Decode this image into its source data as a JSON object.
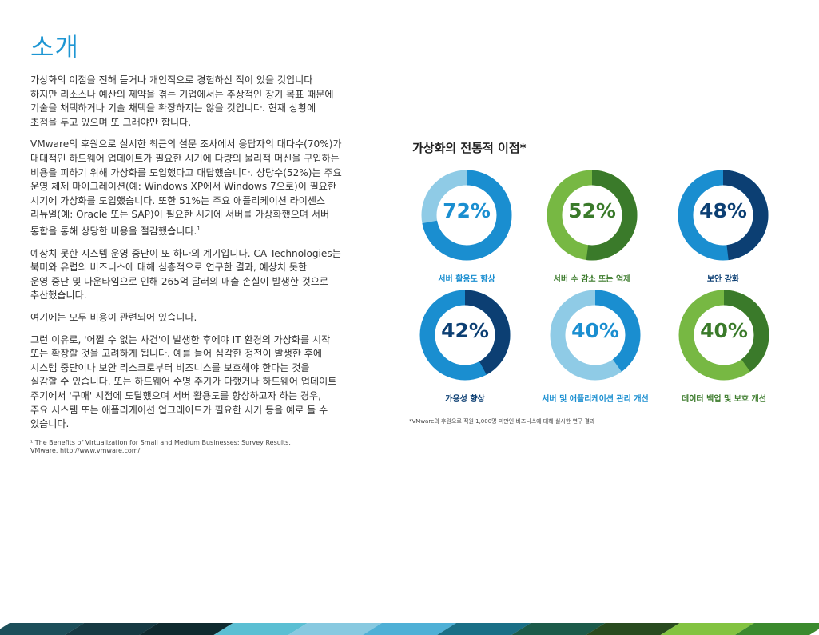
{
  "page": {
    "title": "소개",
    "paragraphs": [
      "가상화의 이점을 전해 듣거나 개인적으로 경험하신 적이 있을 것입니다\n하지만 리소스나 예산의 제약을 겪는 기업에서는 추상적인 장기 목표 때문에\n기술을 채택하거나 기술 채택을 확장하지는 않을 것입니다. 현재 상황에\n초점을 두고 있으며 또 그래야만 합니다.",
      "VMware의 후원으로 실시한 최근의 설문 조사에서 응답자의 대다수(70%)가\n대대적인 하드웨어 업데이트가 필요한 시기에 다량의 물리적 머신을 구입하는\n비용을 피하기 위해 가상화를 도입했다고 대답했습니다. 상당수(52%)는 주요\n운영 체제 마이그레이션(예: Windows XP에서 Windows 7으로)이 필요한\n시기에 가상화를 도입했습니다. 또한 51%는 주요 애플리케이션 라이센스\n리뉴얼(예: Oracle 또는 SAP)이 필요한 시기에 서버를 가상화했으며 서버\n통합을 통해 상당한 비용을 절감했습니다.",
      "예상치 못한 시스템 운영 중단이 또 하나의 계기입니다. CA Technologies는\n북미와 유럽의 비즈니스에 대해 심층적으로 연구한 결과, 예상치 못한\n운영 중단 및 다운타임으로 인해 265억 달러의 매출 손실이 발생한 것으로\n추산했습니다.",
      "여기에는 모두 비용이 관련되어 있습니다.",
      "그런 이유로, '어쩔 수 없는 사건'이 발생한 후에야 IT 환경의 가상화를 시작\n또는 확장할 것을 고려하게 됩니다. 예를 들어 심각한 정전이 발생한 후에\n시스템 중단이나 보안 리스크로부터 비즈니스를 보호해야 한다는 것을\n실감할 수 있습니다. 또는 하드웨어 수명 주기가 다했거나 하드웨어 업데이트\n주기에서 '구매' 시점에 도달했으며 서버 활용도를 향상하고자 하는 경우,\n주요 시스템 또는 애플리케이션 업그레이드가 필요한 시기 등을 예로 들 수\n있습니다."
    ],
    "footnote_marker": "1",
    "footnote": "¹ The Benefits of Virtualization for Small and Medium Businesses: Survey Results.\n  VMware. http://www.vmware.com/"
  },
  "chart_data": {
    "type": "pie",
    "title": "가상화의 전통적 이점*",
    "items": [
      {
        "label": "서버 활용도 향상",
        "value": 72,
        "display": "72%",
        "color": "#1a8ed0",
        "track": "#8fcbe6",
        "text_color": "#1a8ed0"
      },
      {
        "label": "서버 수 감소 또는 억제",
        "value": 52,
        "display": "52%",
        "color": "#3a7a2a",
        "track": "#77b843",
        "text_color": "#3a7a2a"
      },
      {
        "label": "보안 강화",
        "value": 48,
        "display": "48%",
        "color": "#0c3f73",
        "track": "#1a8ed0",
        "text_color": "#0c3f73"
      },
      {
        "label": "가용성 향상",
        "value": 42,
        "display": "42%",
        "color": "#0c3f73",
        "track": "#1a8ed0",
        "text_color": "#0c3f73"
      },
      {
        "label": "서버 및 애플리케이션 관리 개선",
        "value": 40,
        "display": "40%",
        "color": "#1a8ed0",
        "track": "#8fcbe6",
        "text_color": "#1a8ed0"
      },
      {
        "label": "데이터 백업 및 보호 개선",
        "value": 40,
        "display": "40%",
        "color": "#3a7a2a",
        "track": "#77b843",
        "text_color": "#3a7a2a"
      }
    ],
    "note": "*VMware의 후원으로 직원 1,000명 미만인 비즈니스에 대해 실시한 연구 결과"
  },
  "bottom_bar_colors": [
    "#1c4f5a",
    "#163a43",
    "#0f2a2f",
    "#5bbfd3",
    "#88c9e0",
    "#4fb0d6",
    "#1a6f86",
    "#1c5b4a",
    "#294b1f",
    "#83c341",
    "#3b8a2e"
  ]
}
